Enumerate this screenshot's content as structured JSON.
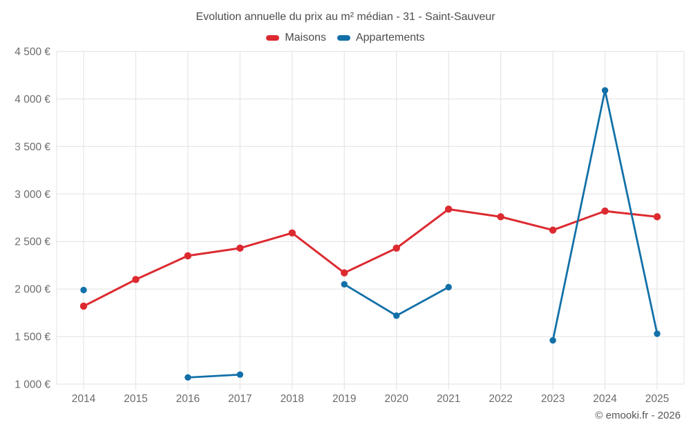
{
  "header": {
    "title": "Evolution annuelle du prix au m² médian - 31 - Saint-Sauveur"
  },
  "footer": {
    "copyright": "© emooki.fr - 2026"
  },
  "chart_data": {
    "type": "line",
    "title": "Evolution annuelle du prix au m² médian - 31 - Saint-Sauveur",
    "categories": [
      "2014",
      "2015",
      "2016",
      "2017",
      "2018",
      "2019",
      "2020",
      "2021",
      "2022",
      "2023",
      "2024",
      "2025"
    ],
    "series": [
      {
        "name": "Maisons",
        "color": "#dc2a30",
        "values": [
          1820,
          2100,
          2350,
          2430,
          2590,
          2170,
          2430,
          2840,
          2760,
          2620,
          2820,
          2760
        ]
      },
      {
        "name": "Appartements",
        "color": "#1270a8",
        "values": [
          1990,
          null,
          1070,
          1100,
          null,
          2050,
          1720,
          2020,
          null,
          1460,
          4090,
          1530
        ]
      }
    ],
    "xlabel": "",
    "ylabel": "",
    "ylim": [
      1000,
      4500
    ],
    "yticks": [
      {
        "value": 1000,
        "label": "1 000 €"
      },
      {
        "value": 1500,
        "label": "1 500 €"
      },
      {
        "value": 2000,
        "label": "2 000 €"
      },
      {
        "value": 2500,
        "label": "2 500 €"
      },
      {
        "value": 3000,
        "label": "3 000 €"
      },
      {
        "value": 3500,
        "label": "3 500 €"
      },
      {
        "value": 4000,
        "label": "4 000 €"
      },
      {
        "value": 4500,
        "label": "4 500 €"
      }
    ],
    "grid": true,
    "legend_position": "top",
    "colors": {
      "grid": "#e7e7e7",
      "tick_text": "#6b6b6b",
      "title_text": "#4c4c4c"
    }
  }
}
